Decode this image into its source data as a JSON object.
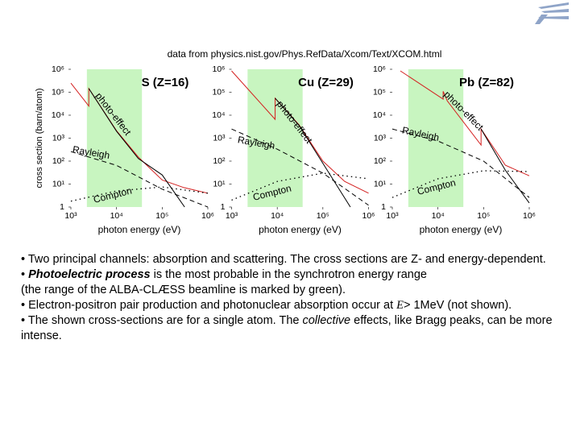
{
  "source": "data from physics.nist.gov/Phys.RefData/Xcom/Text/XCOM.html",
  "chart_data": [
    {
      "type": "line",
      "title": "S (Z=16)",
      "ylabel": "cross section (barn/atom)",
      "xlabel": "photon energy (eV)",
      "xscale": "log",
      "yscale": "log",
      "xlim": [
        1000,
        1000000
      ],
      "ylim": [
        1,
        1000000
      ],
      "xticks": [
        {
          "value": 1000,
          "label": "10³"
        },
        {
          "value": 10000,
          "label": "10⁴"
        },
        {
          "value": 100000,
          "label": "10⁵"
        },
        {
          "value": 1000000,
          "label": "10⁶"
        }
      ],
      "yticks": [
        1,
        {
          "value": 10,
          "label": "10¹"
        },
        {
          "value": 100,
          "label": "10²"
        },
        {
          "value": 1000,
          "label": "10³"
        },
        {
          "value": 10000,
          "label": "10⁴"
        },
        {
          "value": 100000,
          "label": "10⁵"
        },
        {
          "value": 1000000,
          "label": "10⁶"
        }
      ],
      "highlight": [
        2240,
        36000
      ],
      "highlight_color": "#c8f5c0",
      "series": [
        {
          "color": "#d42020",
          "style": "solid",
          "x": [
            1000,
            2470,
            2470,
            10000,
            30000,
            100000,
            300000,
            1000000
          ],
          "values": [
            250000,
            25000,
            145000,
            2100,
            150,
            15,
            7,
            4
          ]
        },
        {
          "name": "photo-effect",
          "color": "#000000",
          "style": "solid",
          "x": [
            2470,
            10000,
            30000,
            100000,
            310000
          ],
          "values": [
            145000,
            2000,
            130,
            25,
            1
          ]
        },
        {
          "name": "Rayleigh",
          "color": "#000000",
          "style": "dashed",
          "x": [
            1000,
            10000,
            100000,
            1000000
          ],
          "values": [
            260,
            65,
            6,
            1
          ]
        },
        {
          "name": "Compton",
          "color": "#000000",
          "style": "dotted",
          "x": [
            1000,
            10000,
            100000,
            1000000
          ],
          "values": [
            1.8,
            5,
            7.5,
            4
          ]
        }
      ]
    },
    {
      "type": "line",
      "title": "Cu (Z=29)",
      "xlabel": "photon energy (eV)",
      "xscale": "log",
      "yscale": "log",
      "xlim": [
        1000,
        1000000
      ],
      "ylim": [
        1,
        1000000
      ],
      "xticks": [
        {
          "value": 1000,
          "label": "10³"
        },
        {
          "value": 10000,
          "label": "10⁴"
        },
        {
          "value": 100000,
          "label": "10⁵"
        },
        {
          "value": 1000000,
          "label": "10⁶"
        }
      ],
      "yticks": [
        1,
        {
          "value": 10,
          "label": "10¹"
        },
        {
          "value": 100,
          "label": "10²"
        },
        {
          "value": 1000,
          "label": "10³"
        },
        {
          "value": 10000,
          "label": "10⁴"
        },
        {
          "value": 100000,
          "label": "10⁵"
        },
        {
          "value": 1000000,
          "label": "10⁶"
        }
      ],
      "highlight": [
        2240,
        36000
      ],
      "highlight_color": "#c8f5c0",
      "series": [
        {
          "color": "#d42020",
          "style": "solid",
          "x": [
            1000,
            8979,
            8979,
            30000,
            100000,
            300000,
            1000000
          ],
          "values": [
            850000,
            6600,
            55000,
            3800,
            100,
            13,
            4
          ]
        },
        {
          "name": "photo-effect",
          "color": "#000000",
          "style": "solid",
          "x": [
            8979,
            30000,
            100000,
            400000
          ],
          "values": [
            55000,
            3600,
            80,
            1
          ]
        },
        {
          "name": "Rayleigh",
          "color": "#000000",
          "style": "dashed",
          "x": [
            1000,
            10000,
            100000,
            1000000
          ],
          "values": [
            2500,
            330,
            30,
            1.2
          ]
        },
        {
          "name": "Compton",
          "color": "#000000",
          "style": "dotted",
          "x": [
            1000,
            10000,
            100000,
            1000000
          ],
          "values": [
            2,
            13,
            30,
            17
          ]
        }
      ]
    },
    {
      "type": "line",
      "title": "Pb (Z=82)",
      "xlabel": "photon energy (eV)",
      "xscale": "log",
      "yscale": "log",
      "xlim": [
        1000,
        1000000
      ],
      "ylim": [
        1,
        1000000
      ],
      "xticks": [
        {
          "value": 1000,
          "label": "10³"
        },
        {
          "value": 10000,
          "label": "10⁴"
        },
        {
          "value": 100000,
          "label": "10⁵"
        },
        {
          "value": 1000000,
          "label": "10⁶"
        }
      ],
      "yticks": [
        1,
        {
          "value": 10,
          "label": "10¹"
        },
        {
          "value": 100,
          "label": "10²"
        },
        {
          "value": 1000,
          "label": "10³"
        },
        {
          "value": 10000,
          "label": "10⁴"
        },
        {
          "value": 100000,
          "label": "10⁵"
        },
        {
          "value": 1000000,
          "label": "10⁶"
        }
      ],
      "highlight": [
        2240,
        36000
      ],
      "highlight_color": "#c8f5c0",
      "series": [
        {
          "color": "#d42020",
          "style": "solid",
          "x": [
            1500,
            13000,
            13000,
            16000,
            88000,
            88000,
            300000,
            1000000
          ],
          "values": [
            850000,
            50000,
            110000,
            42000,
            500,
            2500,
            66,
            23
          ]
        },
        {
          "name": "photo-effect",
          "color": "#000000",
          "style": "solid",
          "x": [
            88000,
            300000,
            1000000
          ],
          "values": [
            2500,
            40,
            1.5
          ]
        },
        {
          "name": "Rayleigh",
          "color": "#000000",
          "style": "dashed",
          "x": [
            1000,
            10000,
            100000,
            1000000
          ],
          "values": [
            2500,
            750,
            100,
            2.6
          ]
        },
        {
          "name": "Compton",
          "color": "#000000",
          "style": "dotted",
          "x": [
            1000,
            10000,
            100000,
            1000000
          ],
          "values": [
            2.6,
            17,
            38,
            35
          ]
        }
      ]
    }
  ],
  "bullets": [
    [
      "• Two principal channels: absorption and scattering. The cross sections are Z- and energy-dependent."
    ],
    [
      "• ",
      "Photoelectric process",
      " is the most probable in the synchrotron energy range",
      "(the range of the ALBA-CLÆSS beamline is marked by green)."
    ],
    [
      "• Electron-positron pair production and photonuclear absorption occur at ",
      "E",
      "> 1MeV (not shown)."
    ],
    [
      "• The shown cross-sections are for a single atom. The ",
      "collective",
      " effects, like Bragg peaks, can be more intense."
    ]
  ]
}
